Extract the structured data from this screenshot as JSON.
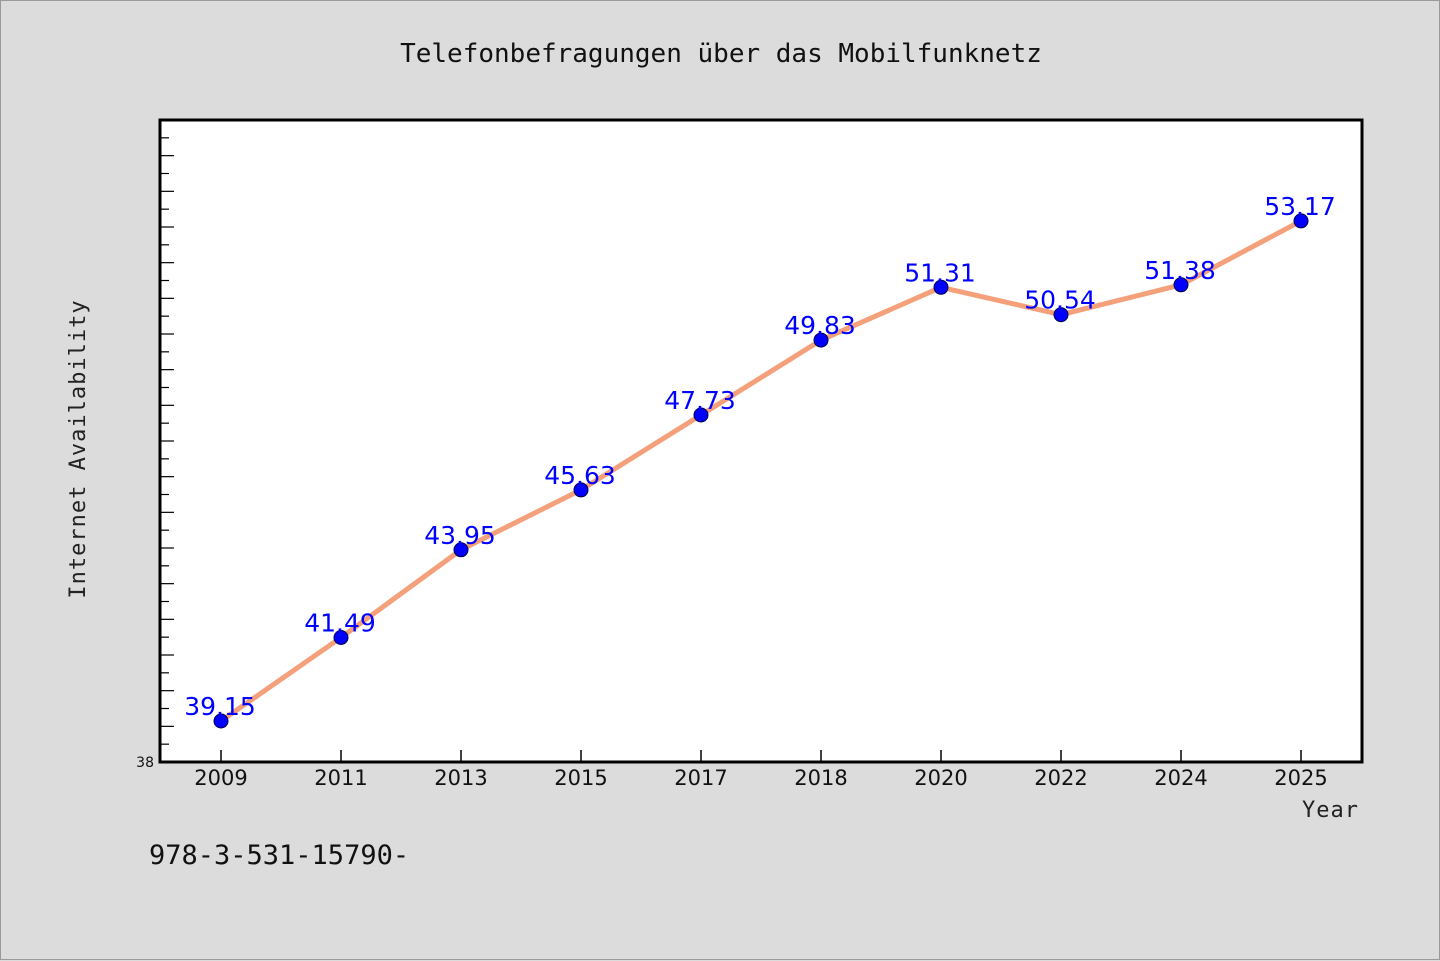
{
  "chart_data": {
    "type": "line",
    "title": "Telefonbefragungen über das Mobilfunknetz",
    "xlabel": "Year",
    "ylabel": "Internet Availability",
    "categories": [
      "2009",
      "2011",
      "2013",
      "2015",
      "2017",
      "2018",
      "2020",
      "2022",
      "2024",
      "2025"
    ],
    "values": [
      39.15,
      41.49,
      43.95,
      45.63,
      47.73,
      49.83,
      51.31,
      50.54,
      51.38,
      53.17
    ],
    "value_labels": [
      "39.15",
      "41.49",
      "43.95",
      "45.63",
      "47.73",
      "49.83",
      "51.31",
      "50.54",
      "51.38",
      "53.17"
    ],
    "ylim": [
      38,
      56
    ],
    "y_tick_labels": [
      "38"
    ],
    "grid": false,
    "line_color": "#f4a07a",
    "marker_color": "#0000ff",
    "label_color": "#0000ff"
  },
  "footer_text": "978-3-531-15790-"
}
